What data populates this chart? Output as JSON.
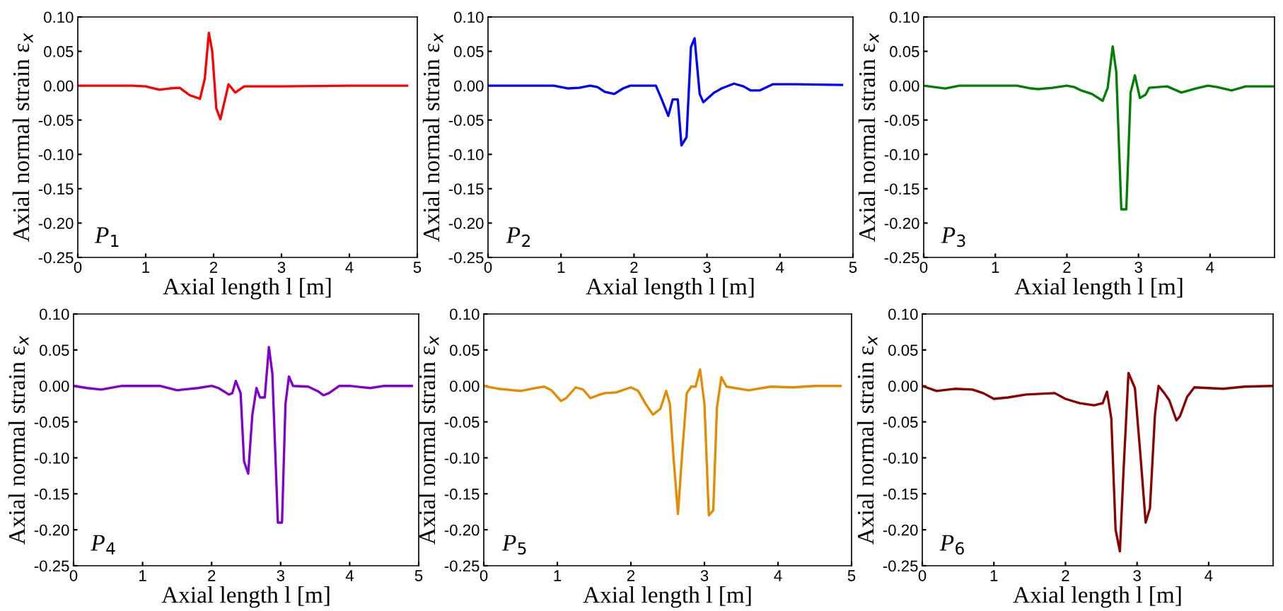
{
  "chart_data": [
    {
      "type": "line",
      "xlabel": "Axial length l [m]",
      "ylabel": "Axial normal strain ε$_{x}$",
      "annotations": [
        "P$_{1}$"
      ],
      "xlim": [
        0,
        5
      ],
      "xticks": [
        0,
        1,
        2,
        3,
        4,
        5
      ],
      "ylim": [
        -0.25,
        0.1
      ],
      "yticks": [
        {
          "value": -0.25,
          "label": "-0.25"
        },
        {
          "value": -0.2,
          "label": "-0.20"
        },
        {
          "value": -0.15,
          "label": "-0.15"
        },
        {
          "value": -0.1,
          "label": "-0.10"
        },
        {
          "value": -0.05,
          "label": "-0.05"
        },
        {
          "value": 0,
          "label": "0.00"
        },
        {
          "value": 0.05,
          "label": "0.05"
        },
        {
          "value": 0.1,
          "label": "0.10"
        }
      ],
      "series": [
        {
          "color": "#ff0000",
          "x": [
            0,
            0.8,
            1.0,
            1.2,
            1.35,
            1.5,
            1.65,
            1.8,
            1.87,
            1.93,
            1.98,
            2.04,
            2.1,
            2.22,
            2.32,
            2.45,
            3,
            4,
            4.85
          ],
          "values": [
            0,
            0,
            -0.001,
            -0.006,
            -0.004,
            -0.003,
            -0.014,
            -0.019,
            0.01,
            0.077,
            0.05,
            -0.033,
            -0.049,
            0.002,
            -0.01,
            -0.001,
            -0.001,
            0,
            0
          ]
        }
      ]
    },
    {
      "type": "line",
      "xlabel": "Axial length l [m]",
      "ylabel": "Axial normal strain ε$_{x}$",
      "annotations": [
        "P$_{2}$"
      ],
      "xlim": [
        0,
        5
      ],
      "xticks": [
        0,
        1,
        2,
        3,
        4,
        5
      ],
      "ylim": [
        -0.25,
        0.1
      ],
      "yticks": [
        {
          "value": -0.25,
          "label": "-0.25"
        },
        {
          "value": -0.2,
          "label": "-0.20"
        },
        {
          "value": -0.15,
          "label": "-0.15"
        },
        {
          "value": -0.1,
          "label": "-0.10"
        },
        {
          "value": -0.05,
          "label": "-0.05"
        },
        {
          "value": 0,
          "label": "0.00"
        },
        {
          "value": 0.05,
          "label": "0.05"
        },
        {
          "value": 0.1,
          "label": "0.10"
        }
      ],
      "series": [
        {
          "color": "#0000ff",
          "x": [
            0,
            0.9,
            1.1,
            1.25,
            1.4,
            1.5,
            1.6,
            1.73,
            1.85,
            1.95,
            2.3,
            2.38,
            2.47,
            2.53,
            2.6,
            2.65,
            2.72,
            2.78,
            2.83,
            2.9,
            2.95,
            3.1,
            3.2,
            3.37,
            3.5,
            3.6,
            3.72,
            3.9,
            4.2,
            4.85
          ],
          "values": [
            0,
            0,
            -0.004,
            -0.003,
            0,
            -0.002,
            -0.009,
            -0.012,
            -0.004,
            0,
            0,
            -0.02,
            -0.044,
            -0.02,
            -0.02,
            -0.087,
            -0.075,
            0.056,
            0.069,
            -0.012,
            -0.024,
            -0.01,
            -0.004,
            0.003,
            -0.001,
            -0.007,
            -0.007,
            0.002,
            0.002,
            0.001
          ]
        }
      ]
    },
    {
      "type": "line",
      "xlabel": "Axial length l [m]",
      "ylabel": "Axial normal strain ε$_{x}$",
      "annotations": [
        "P$_{3}$"
      ],
      "xlim": [
        0,
        4.9
      ],
      "xticks": [
        0,
        1,
        2,
        3,
        4
      ],
      "ylim": [
        -0.25,
        0.1
      ],
      "yticks": [
        {
          "value": -0.25,
          "label": "-0.25"
        },
        {
          "value": -0.2,
          "label": "-0.20"
        },
        {
          "value": -0.15,
          "label": "-0.15"
        },
        {
          "value": -0.1,
          "label": "-0.10"
        },
        {
          "value": -0.05,
          "label": "-0.05"
        },
        {
          "value": 0,
          "label": "0.00"
        },
        {
          "value": 0.05,
          "label": "0.05"
        },
        {
          "value": 0.1,
          "label": "0.10"
        }
      ],
      "series": [
        {
          "color": "#008000",
          "x": [
            0,
            0.15,
            0.3,
            0.5,
            1.3,
            1.5,
            1.6,
            1.8,
            2.0,
            2.1,
            2.2,
            2.35,
            2.5,
            2.57,
            2.64,
            2.69,
            2.76,
            2.83,
            2.89,
            2.95,
            3.02,
            3.1,
            3.15,
            3.4,
            3.6,
            3.8,
            3.97,
            4.1,
            4.3,
            4.5,
            4.9
          ],
          "values": [
            0,
            -0.002,
            -0.004,
            0,
            0,
            -0.004,
            -0.005,
            -0.003,
            0,
            -0.002,
            -0.007,
            -0.012,
            -0.022,
            -0.003,
            0.057,
            0.02,
            -0.18,
            -0.18,
            -0.01,
            0.015,
            -0.018,
            -0.013,
            -0.003,
            -0.001,
            -0.01,
            -0.004,
            0,
            -0.002,
            -0.007,
            -0.001,
            -0.001
          ]
        }
      ]
    },
    {
      "type": "line",
      "xlabel": "Axial length l [m]",
      "ylabel": "Axial normal strain ε$_{x}$",
      "annotations": [
        "P$_{4}$"
      ],
      "xlim": [
        0,
        5
      ],
      "xticks": [
        0,
        1,
        2,
        3,
        4,
        5
      ],
      "ylim": [
        -0.25,
        0.1
      ],
      "yticks": [
        {
          "value": -0.25,
          "label": "-0.25"
        },
        {
          "value": -0.2,
          "label": "-0.20"
        },
        {
          "value": -0.15,
          "label": "-0.15"
        },
        {
          "value": -0.1,
          "label": "-0.10"
        },
        {
          "value": -0.05,
          "label": "-0.05"
        },
        {
          "value": 0,
          "label": "0.00"
        },
        {
          "value": 0.05,
          "label": "0.05"
        },
        {
          "value": 0.1,
          "label": "0.10"
        }
      ],
      "series": [
        {
          "color": "#8000d0",
          "x": [
            0,
            0.2,
            0.4,
            0.7,
            1.25,
            1.5,
            1.8,
            2.0,
            2.1,
            2.25,
            2.3,
            2.35,
            2.42,
            2.47,
            2.53,
            2.59,
            2.65,
            2.7,
            2.77,
            2.83,
            2.88,
            2.96,
            3.02,
            3.07,
            3.12,
            3.18,
            3.4,
            3.55,
            3.62,
            3.7,
            3.85,
            4.0,
            4.3,
            4.5,
            4.9
          ],
          "values": [
            0,
            -0.003,
            -0.005,
            0,
            0,
            -0.006,
            -0.003,
            0,
            -0.003,
            -0.012,
            -0.01,
            0.007,
            -0.01,
            -0.105,
            -0.122,
            -0.04,
            -0.003,
            -0.016,
            -0.016,
            0.054,
            0.017,
            -0.19,
            -0.19,
            -0.025,
            0.013,
            0,
            -0.001,
            -0.008,
            -0.013,
            -0.01,
            0,
            0,
            -0.003,
            0,
            0
          ]
        }
      ]
    },
    {
      "type": "line",
      "xlabel": "Axial length l [m]",
      "ylabel": "Axial normal strain ε$_{x}$",
      "annotations": [
        "P$_{5}$"
      ],
      "xlim": [
        0,
        5
      ],
      "xticks": [
        0,
        1,
        2,
        3,
        4,
        5
      ],
      "ylim": [
        -0.25,
        0.1
      ],
      "yticks": [
        {
          "value": -0.25,
          "label": "-0.25"
        },
        {
          "value": -0.2,
          "label": "-0.20"
        },
        {
          "value": -0.15,
          "label": "-0.15"
        },
        {
          "value": -0.1,
          "label": "-0.10"
        },
        {
          "value": -0.05,
          "label": "-0.05"
        },
        {
          "value": 0,
          "label": "0.00"
        },
        {
          "value": 0.05,
          "label": "0.05"
        },
        {
          "value": 0.1,
          "label": "0.10"
        }
      ],
      "series": [
        {
          "color": "#e68a00",
          "x": [
            0,
            0.2,
            0.5,
            0.7,
            0.82,
            0.92,
            1.05,
            1.12,
            1.25,
            1.35,
            1.45,
            1.55,
            1.65,
            1.8,
            2.0,
            2.1,
            2.2,
            2.3,
            2.4,
            2.48,
            2.53,
            2.58,
            2.64,
            2.7,
            2.76,
            2.82,
            2.88,
            2.94,
            3.0,
            3.06,
            3.12,
            3.17,
            3.23,
            3.3,
            3.6,
            3.9,
            4.2,
            4.5,
            4.85
          ],
          "values": [
            0,
            -0.004,
            -0.007,
            -0.003,
            -0.001,
            -0.006,
            -0.021,
            -0.017,
            -0.002,
            -0.005,
            -0.017,
            -0.013,
            -0.01,
            -0.009,
            -0.002,
            -0.007,
            -0.025,
            -0.04,
            -0.032,
            -0.007,
            -0.025,
            -0.1,
            -0.178,
            -0.09,
            -0.01,
            -0.001,
            -0.001,
            0.023,
            -0.025,
            -0.18,
            -0.173,
            -0.03,
            0.012,
            -0.001,
            -0.006,
            -0.001,
            -0.002,
            0,
            0
          ]
        }
      ]
    },
    {
      "type": "line",
      "xlabel": "Axial length l [m]",
      "ylabel": "Axial normal strain ε$_{x}$",
      "annotations": [
        "P$_{6}$"
      ],
      "xlim": [
        0,
        4.9
      ],
      "xticks": [
        0,
        1,
        2,
        3,
        4
      ],
      "ylim": [
        -0.25,
        0.1
      ],
      "yticks": [
        {
          "value": -0.25,
          "label": "-0.25"
        },
        {
          "value": -0.2,
          "label": "-0.20"
        },
        {
          "value": -0.15,
          "label": "-0.15"
        },
        {
          "value": -0.1,
          "label": "-0.10"
        },
        {
          "value": -0.05,
          "label": "-0.05"
        },
        {
          "value": 0,
          "label": "0.00"
        },
        {
          "value": 0.05,
          "label": "0.05"
        },
        {
          "value": 0.1,
          "label": "0.10"
        }
      ],
      "series": [
        {
          "color": "#8b0000",
          "x": [
            0,
            0.2,
            0.45,
            0.7,
            0.85,
            1.0,
            1.2,
            1.45,
            1.85,
            2.0,
            2.2,
            2.4,
            2.52,
            2.58,
            2.64,
            2.7,
            2.76,
            2.81,
            2.88,
            2.97,
            3.05,
            3.12,
            3.18,
            3.25,
            3.3,
            3.38,
            3.45,
            3.55,
            3.6,
            3.7,
            3.8,
            4.0,
            4.2,
            4.5,
            4.9
          ],
          "values": [
            0,
            -0.007,
            -0.004,
            -0.005,
            -0.01,
            -0.018,
            -0.016,
            -0.012,
            -0.01,
            -0.018,
            -0.024,
            -0.027,
            -0.024,
            -0.008,
            -0.045,
            -0.2,
            -0.23,
            -0.12,
            0.018,
            -0.003,
            -0.1,
            -0.19,
            -0.17,
            -0.04,
            0,
            -0.01,
            -0.02,
            -0.048,
            -0.042,
            -0.015,
            -0.002,
            -0.003,
            -0.004,
            -0.001,
            0
          ]
        }
      ]
    }
  ]
}
